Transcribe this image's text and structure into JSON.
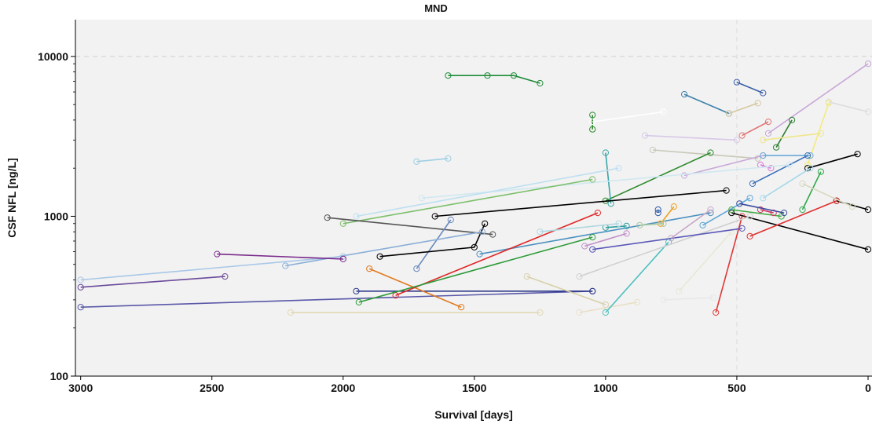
{
  "chart_data": {
    "type": "line",
    "title": "MND",
    "xlabel": "Survival [days]",
    "ylabel": "CSF NFL [ng/L]",
    "x_reversed": true,
    "xlim": [
      3020,
      -15
    ],
    "ylim": [
      100,
      17000
    ],
    "y_scale": "log",
    "x_ticks": [
      3000,
      2500,
      2000,
      1500,
      1000,
      500,
      0
    ],
    "y_ticks": [
      100,
      1000,
      10000
    ],
    "reference_lines": {
      "y": 10000,
      "x": 500
    },
    "grid": false,
    "background": "#f2f2f2",
    "series": [
      {
        "color": "#1f8b3a",
        "points": [
          [
            1600,
            7600
          ],
          [
            1450,
            7600
          ],
          [
            1350,
            7600
          ],
          [
            1250,
            6800
          ]
        ]
      },
      {
        "color": "#3a5fa8",
        "points": [
          [
            500,
            6900
          ],
          [
            400,
            5900
          ]
        ]
      },
      {
        "color": "#3a7fa8",
        "points": [
          [
            700,
            5800
          ],
          [
            530,
            4400
          ]
        ]
      },
      {
        "color": "#d4c8a0",
        "points": [
          [
            530,
            4400
          ],
          [
            420,
            5100
          ]
        ]
      },
      {
        "color": "#2e8b2e",
        "points": [
          [
            1050,
            4300
          ],
          [
            1050,
            3500
          ]
        ]
      },
      {
        "color": "#ffffff",
        "points": [
          [
            1050,
            3900
          ],
          [
            780,
            4500
          ]
        ]
      },
      {
        "color": "#c8a8d8",
        "points": [
          [
            380,
            3300
          ],
          [
            0,
            9000
          ]
        ]
      },
      {
        "color": "#2e7d32",
        "points": [
          [
            350,
            2700
          ],
          [
            290,
            4000
          ]
        ]
      },
      {
        "color": "#f0e68c",
        "points": [
          [
            400,
            3000
          ],
          [
            180,
            3300
          ]
        ]
      },
      {
        "color": "#e07070",
        "points": [
          [
            480,
            3200
          ],
          [
            380,
            3900
          ]
        ]
      },
      {
        "color": "#d8c8e8",
        "points": [
          [
            850,
            3200
          ],
          [
            500,
            3000
          ]
        ]
      },
      {
        "color": "#dddddd",
        "points": [
          [
            150,
            5200
          ],
          [
            0,
            4500
          ]
        ]
      },
      {
        "color": "#f5ea80",
        "points": [
          [
            230,
            2100
          ],
          [
            150,
            5100
          ]
        ]
      },
      {
        "color": "#c8c8b8",
        "points": [
          [
            820,
            2600
          ],
          [
            420,
            2300
          ]
        ]
      },
      {
        "color": "#9fcfe3",
        "points": [
          [
            1720,
            2200
          ],
          [
            1600,
            2300
          ]
        ]
      },
      {
        "color": "#c8a8d8",
        "points": [
          [
            700,
            1800
          ],
          [
            400,
            2400
          ]
        ]
      },
      {
        "color": "#2e8b2e",
        "points": [
          [
            1000,
            1250
          ],
          [
            600,
            2500
          ]
        ]
      },
      {
        "color": "#3aa6a6",
        "points": [
          [
            1000,
            2500
          ],
          [
            980,
            1200
          ]
        ]
      },
      {
        "color": "#6aa8d8",
        "points": [
          [
            400,
            2400
          ],
          [
            220,
            2400
          ]
        ]
      },
      {
        "color": "#000000",
        "points": [
          [
            230,
            2000
          ],
          [
            40,
            2450
          ]
        ]
      },
      {
        "color": "#3a6fb8",
        "points": [
          [
            440,
            1600
          ],
          [
            230,
            2400
          ]
        ]
      },
      {
        "color": "#d878d8",
        "points": [
          [
            410,
            2100
          ],
          [
            370,
            2000
          ]
        ]
      },
      {
        "color": "#a8d8e8",
        "points": [
          [
            400,
            1300
          ],
          [
            220,
            2000
          ]
        ]
      },
      {
        "color": "#2ea84a",
        "points": [
          [
            250,
            1100
          ],
          [
            180,
            1900
          ]
        ]
      },
      {
        "color": "#d0e8f0",
        "points": [
          [
            1700,
            1300
          ],
          [
            300,
            2100
          ]
        ]
      },
      {
        "color": "#bde0f0",
        "points": [
          [
            1950,
            1000
          ],
          [
            950,
            2000
          ]
        ]
      },
      {
        "color": "#7cbf6a",
        "points": [
          [
            2000,
            900
          ],
          [
            1050,
            1700
          ]
        ]
      },
      {
        "color": "#000000",
        "points": [
          [
            1650,
            1000
          ],
          [
            540,
            1450
          ]
        ]
      },
      {
        "color": "#000000",
        "points": [
          [
            520,
            1050
          ],
          [
            0,
            620
          ]
        ]
      },
      {
        "color": "#000000",
        "points": [
          [
            120,
            1250
          ],
          [
            0,
            1100
          ]
        ]
      },
      {
        "color": "#e03030",
        "points": [
          [
            450,
            750
          ],
          [
            120,
            1250
          ]
        ]
      },
      {
        "color": "#555555",
        "points": [
          [
            2060,
            980
          ],
          [
            1430,
            770
          ]
        ]
      },
      {
        "color": "#6a8abf",
        "points": [
          [
            1720,
            470
          ],
          [
            1590,
            950
          ]
        ]
      },
      {
        "color": "#000000",
        "points": [
          [
            1860,
            560
          ],
          [
            1500,
            640
          ],
          [
            1460,
            900
          ]
        ]
      },
      {
        "color": "#8aaed8",
        "points": [
          [
            2220,
            490
          ],
          [
            1470,
            800
          ]
        ]
      },
      {
        "color": "#4a90c0",
        "points": [
          [
            1480,
            580
          ],
          [
            600,
            1050
          ]
        ]
      },
      {
        "color": "#a8c8e8",
        "points": [
          [
            3000,
            400
          ],
          [
            2000,
            560
          ]
        ]
      },
      {
        "color": "#6a4a9a",
        "points": [
          [
            3000,
            360
          ],
          [
            2450,
            420
          ]
        ]
      },
      {
        "color": "#7a2a8a",
        "points": [
          [
            2480,
            580
          ],
          [
            2000,
            540
          ]
        ]
      },
      {
        "color": "#5a58a8",
        "points": [
          [
            3000,
            270
          ],
          [
            1050,
            340
          ]
        ]
      },
      {
        "color": "#2e3a8a",
        "points": [
          [
            1950,
            340
          ],
          [
            1050,
            340
          ]
        ]
      },
      {
        "color": "#e07a20",
        "points": [
          [
            1900,
            470
          ],
          [
            1550,
            270
          ]
        ]
      },
      {
        "color": "#e02828",
        "points": [
          [
            1800,
            320
          ],
          [
            1030,
            1050
          ]
        ]
      },
      {
        "color": "#2e9b3a",
        "points": [
          [
            1940,
            290
          ],
          [
            1050,
            740
          ]
        ]
      },
      {
        "color": "#d8d0a8",
        "points": [
          [
            1300,
            420
          ],
          [
            1000,
            280
          ]
        ]
      },
      {
        "color": "#e0d8b0",
        "points": [
          [
            2200,
            250
          ],
          [
            1250,
            250
          ]
        ]
      },
      {
        "color": "#e8e0c8",
        "points": [
          [
            1100,
            250
          ],
          [
            880,
            290
          ]
        ]
      },
      {
        "color": "#50c0c0",
        "points": [
          [
            1000,
            250
          ],
          [
            760,
            690
          ]
        ]
      },
      {
        "color": "#e8e8e8",
        "points": [
          [
            780,
            300
          ],
          [
            590,
            310
          ]
        ]
      },
      {
        "color": "#e03838",
        "points": [
          [
            580,
            250
          ],
          [
            480,
            1000
          ]
        ]
      },
      {
        "color": "#e8e8d8",
        "points": [
          [
            720,
            340
          ],
          [
            520,
            800
          ]
        ]
      },
      {
        "color": "#d0d0d0",
        "points": [
          [
            1100,
            420
          ],
          [
            450,
            1000
          ]
        ]
      },
      {
        "color": "#5a58b8",
        "points": [
          [
            1050,
            620
          ],
          [
            480,
            840
          ]
        ]
      },
      {
        "color": "#c090c8",
        "points": [
          [
            1080,
            650
          ],
          [
            920,
            780
          ]
        ]
      },
      {
        "color": "#30a0a0",
        "points": [
          [
            1000,
            850
          ],
          [
            920,
            870
          ]
        ]
      },
      {
        "color": "#b0d8e0",
        "points": [
          [
            1250,
            800
          ],
          [
            950,
            900
          ]
        ]
      },
      {
        "color": "#2a5aa8",
        "points": [
          [
            800,
            1100
          ],
          [
            800,
            1050
          ]
        ]
      },
      {
        "color": "#f0a020",
        "points": [
          [
            790,
            900
          ],
          [
            740,
            1150
          ]
        ]
      },
      {
        "color": "#a8c8a0",
        "points": [
          [
            870,
            880
          ],
          [
            780,
            900
          ]
        ]
      },
      {
        "color": "#c8a8c8",
        "points": [
          [
            750,
            730
          ],
          [
            600,
            1100
          ]
        ]
      },
      {
        "color": "#60a8d8",
        "points": [
          [
            630,
            880
          ],
          [
            450,
            1300
          ]
        ]
      },
      {
        "color": "#40a840",
        "points": [
          [
            520,
            1100
          ],
          [
            330,
            1000
          ]
        ]
      },
      {
        "color": "#d03060",
        "points": [
          [
            410,
            1100
          ],
          [
            360,
            1050
          ]
        ]
      },
      {
        "color": "#d8d8c0",
        "points": [
          [
            250,
            1600
          ],
          [
            60,
            1150
          ]
        ]
      },
      {
        "color": "#3a4a9a",
        "points": [
          [
            490,
            1200
          ],
          [
            320,
            1050
          ]
        ]
      }
    ]
  }
}
